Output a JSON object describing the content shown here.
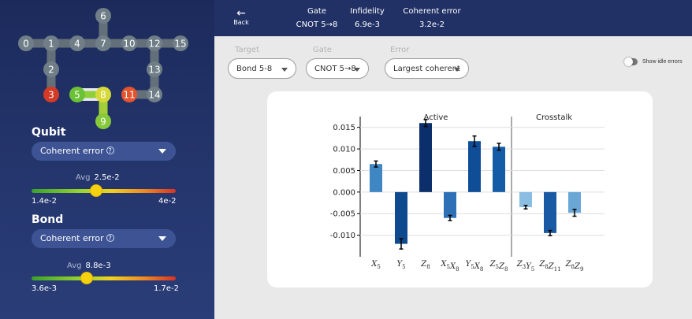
{
  "sidebar": {
    "qubit_map": {
      "qubits": [
        {
          "id": "0",
          "color": "#6f7e87"
        },
        {
          "id": "1",
          "color": "#6f7e87"
        },
        {
          "id": "2",
          "color": "#6f7e87"
        },
        {
          "id": "3",
          "color": "#d43a26"
        },
        {
          "id": "4",
          "color": "#6f7e87"
        },
        {
          "id": "5",
          "color": "#6cc236"
        },
        {
          "id": "6",
          "color": "#6f7e87"
        },
        {
          "id": "7",
          "color": "#6f7e87"
        },
        {
          "id": "8",
          "color": "#d6d93a"
        },
        {
          "id": "9",
          "color": "#86c93a"
        },
        {
          "id": "10",
          "color": "#6f7e87"
        },
        {
          "id": "11",
          "color": "#e4542f"
        },
        {
          "id": "12",
          "color": "#6f7e87"
        },
        {
          "id": "13",
          "color": "#6f7e87"
        },
        {
          "id": "14",
          "color": "#6f7e87"
        },
        {
          "id": "15",
          "color": "#6f7e87"
        }
      ],
      "selected_bond": "5-8"
    },
    "qubit": {
      "title": "Qubit",
      "metric_label": "Coherent error",
      "avg_label": "Avg",
      "avg_value": "2.5e-2",
      "avg_level": 0.45,
      "min": "1.4e-2",
      "max": "4e-2"
    },
    "bond": {
      "title": "Bond",
      "metric_label": "Coherent error",
      "avg_label": "Avg",
      "avg_value": "8.8e-3",
      "avg_level": 0.38,
      "min": "3.6e-3",
      "max": "1.7e-2"
    }
  },
  "header": {
    "back_label": "Back",
    "gate_label": "Gate",
    "gate_value": "CNOT 5→8",
    "infidelity_label": "Infidelity",
    "infidelity_value": "6.9e-3",
    "coherent_label": "Coherent error",
    "coherent_value": "3.2e-2"
  },
  "filters": {
    "target_label": "Target",
    "target_value": "Bond 5-8",
    "gate_label": "Gate",
    "gate_value": "CNOT  5→8",
    "error_label": "Error",
    "error_value": "Largest coherent",
    "idle_toggle_label": "Show idle errors",
    "idle_toggle_on": false
  },
  "chart_data": {
    "type": "bar",
    "panels": [
      "Active",
      "Crosstalk"
    ],
    "categories": [
      "X5",
      "Y5",
      "Z8",
      "X5X8",
      "Y5X8",
      "Z5Z8",
      "Z3Y5",
      "Z8Z11",
      "Z8Z9"
    ],
    "values": [
      0.0065,
      -0.012,
      0.016,
      -0.006,
      0.0118,
      0.0105,
      -0.0035,
      -0.0095,
      -0.0048
    ],
    "errors": [
      0.0007,
      0.0012,
      0.0008,
      0.0006,
      0.0012,
      0.0008,
      0.0004,
      0.0006,
      0.0008
    ],
    "panel_of": [
      0,
      0,
      0,
      0,
      0,
      0,
      1,
      1,
      1
    ],
    "colors": [
      "#3f86c4",
      "#0e4a8d",
      "#0b2f6a",
      "#2d70b6",
      "#0f4d96",
      "#155ca6",
      "#8bbde2",
      "#1a5aa4",
      "#6aa7d7"
    ],
    "ylim": [
      -0.015,
      0.0175
    ],
    "yticks": [
      "0.015",
      "0.010",
      "0.005",
      "0.000",
      "-0.005",
      "-0.010"
    ],
    "ytick_values": [
      0.015,
      0.01,
      0.005,
      0,
      -0.005,
      -0.01
    ],
    "grid": true
  }
}
